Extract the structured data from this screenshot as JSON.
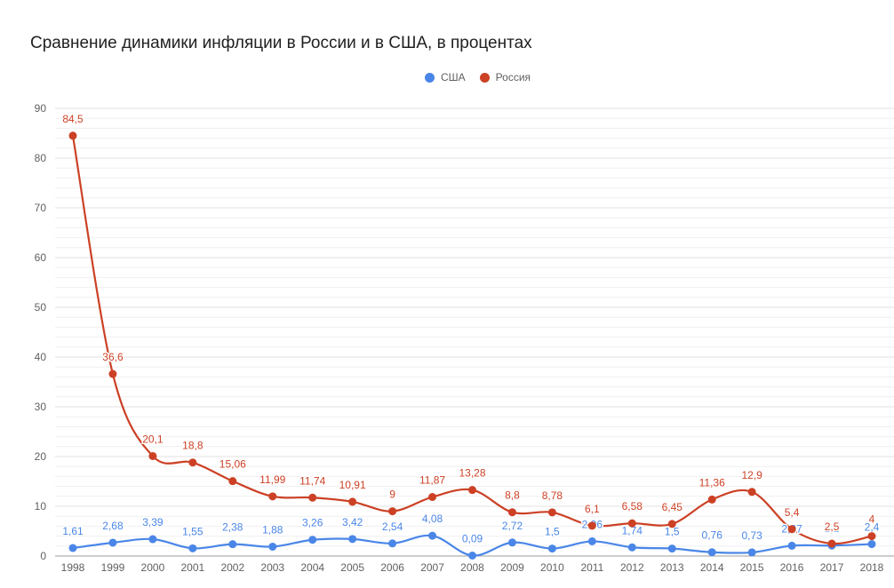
{
  "colors": {
    "usa": "#4a86e8",
    "russia": "#cc4125",
    "grid": "#e0e0e0",
    "axis_text": "#616161"
  },
  "chart_data": {
    "type": "line",
    "title": "Сравнение динамики инфляции в России и в США, в процентах",
    "xlabel": "",
    "ylabel": "",
    "ylim": [
      0,
      90
    ],
    "yticks": [
      0,
      10,
      20,
      30,
      40,
      50,
      60,
      70,
      80,
      90
    ],
    "grid": true,
    "legend_position": "top-center",
    "categories": [
      "1998",
      "1999",
      "2000",
      "2001",
      "2002",
      "2003",
      "2004",
      "2005",
      "2006",
      "2007",
      "2008",
      "2009",
      "2010",
      "2011",
      "2012",
      "2013",
      "2014",
      "2015",
      "2016",
      "2017",
      "2018"
    ],
    "series": [
      {
        "name": "США",
        "color": "#4a86e8",
        "values": [
          1.61,
          2.68,
          3.39,
          1.55,
          2.38,
          1.88,
          3.26,
          3.42,
          2.54,
          4.08,
          0.09,
          2.72,
          1.5,
          2.96,
          1.74,
          1.5,
          0.76,
          0.73,
          2.07,
          2.1,
          2.4
        ],
        "labels": [
          "1,61",
          "2,68",
          "3,39",
          "1,55",
          "2,38",
          "1,88",
          "3,26",
          "3,42",
          "2,54",
          "4,08",
          "0,09",
          "2,72",
          "1,5",
          "2,96",
          "1,74",
          "1,5",
          "0,76",
          "0,73",
          "2,07",
          "2,1",
          "2,4"
        ]
      },
      {
        "name": "Россия",
        "color": "#cc4125",
        "values": [
          84.5,
          36.6,
          20.1,
          18.8,
          15.06,
          11.99,
          11.74,
          10.91,
          9,
          11.87,
          13.28,
          8.8,
          8.78,
          6.1,
          6.58,
          6.45,
          11.36,
          12.9,
          5.4,
          2.5,
          4
        ],
        "labels": [
          "84,5",
          "36,6",
          "20,1",
          "18,8",
          "15,06",
          "11,99",
          "11,74",
          "10,91",
          "9",
          "11,87",
          "13,28",
          "8,8",
          "8,78",
          "6,1",
          "6,58",
          "6,45",
          "11,36",
          "12,9",
          "5,4",
          "2,5",
          "4"
        ]
      }
    ]
  }
}
